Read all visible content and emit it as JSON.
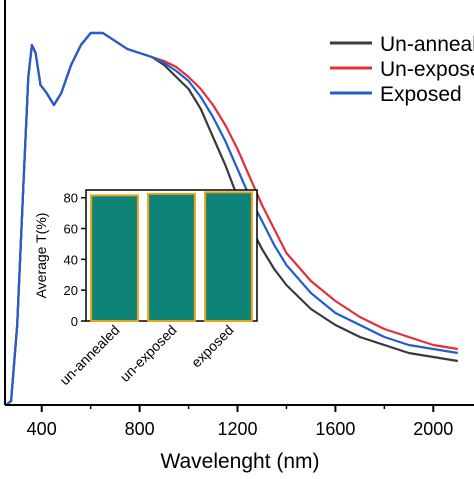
{
  "chart_data": [
    {
      "type": "line",
      "xlabel": "Wavelenght (nm)",
      "ylabel": "",
      "xlim": [
        250,
        2150
      ],
      "ylim": [
        0,
        1
      ],
      "x_ticks": [
        400,
        800,
        1200,
        1600,
        2000
      ],
      "x_tick_labels": [
        "400",
        "800",
        "1200",
        "1600",
        "2000"
      ],
      "legend_position": "top-right",
      "series": [
        {
          "name": "Un-annealed",
          "color": "#3a3a3a",
          "points": [
            [
              255,
              0.0
            ],
            [
              275,
              0.01
            ],
            [
              300,
              0.2
            ],
            [
              325,
              0.55
            ],
            [
              345,
              0.82
            ],
            [
              360,
              0.9
            ],
            [
              375,
              0.88
            ],
            [
              395,
              0.8
            ],
            [
              420,
              0.78
            ],
            [
              450,
              0.75
            ],
            [
              480,
              0.78
            ],
            [
              520,
              0.85
            ],
            [
              560,
              0.9
            ],
            [
              600,
              0.93
            ],
            [
              650,
              0.93
            ],
            [
              700,
              0.91
            ],
            [
              750,
              0.89
            ],
            [
              800,
              0.88
            ],
            [
              850,
              0.87
            ],
            [
              900,
              0.85
            ],
            [
              950,
              0.82
            ],
            [
              1000,
              0.79
            ],
            [
              1050,
              0.74
            ],
            [
              1100,
              0.67
            ],
            [
              1150,
              0.6
            ],
            [
              1200,
              0.52
            ],
            [
              1250,
              0.45
            ],
            [
              1300,
              0.39
            ],
            [
              1350,
              0.34
            ],
            [
              1400,
              0.3
            ],
            [
              1500,
              0.24
            ],
            [
              1600,
              0.2
            ],
            [
              1700,
              0.17
            ],
            [
              1800,
              0.15
            ],
            [
              1900,
              0.13
            ],
            [
              2000,
              0.12
            ],
            [
              2100,
              0.11
            ]
          ]
        },
        {
          "name": "Un-exposed",
          "color": "#e0303a",
          "points": [
            [
              255,
              0.0
            ],
            [
              275,
              0.01
            ],
            [
              300,
              0.2
            ],
            [
              325,
              0.55
            ],
            [
              345,
              0.82
            ],
            [
              360,
              0.9
            ],
            [
              375,
              0.88
            ],
            [
              395,
              0.8
            ],
            [
              420,
              0.78
            ],
            [
              450,
              0.75
            ],
            [
              480,
              0.78
            ],
            [
              520,
              0.85
            ],
            [
              560,
              0.9
            ],
            [
              600,
              0.93
            ],
            [
              650,
              0.93
            ],
            [
              700,
              0.91
            ],
            [
              750,
              0.89
            ],
            [
              800,
              0.88
            ],
            [
              850,
              0.87
            ],
            [
              900,
              0.86
            ],
            [
              950,
              0.845
            ],
            [
              1000,
              0.82
            ],
            [
              1050,
              0.79
            ],
            [
              1100,
              0.75
            ],
            [
              1150,
              0.7
            ],
            [
              1200,
              0.64
            ],
            [
              1250,
              0.57
            ],
            [
              1300,
              0.5
            ],
            [
              1350,
              0.44
            ],
            [
              1400,
              0.38
            ],
            [
              1500,
              0.31
            ],
            [
              1600,
              0.26
            ],
            [
              1700,
              0.22
            ],
            [
              1800,
              0.19
            ],
            [
              1900,
              0.17
            ],
            [
              2000,
              0.15
            ],
            [
              2100,
              0.14
            ]
          ]
        },
        {
          "name": "Exposed",
          "color": "#1f5fd0",
          "points": [
            [
              255,
              0.0
            ],
            [
              275,
              0.01
            ],
            [
              300,
              0.2
            ],
            [
              325,
              0.55
            ],
            [
              345,
              0.82
            ],
            [
              360,
              0.9
            ],
            [
              375,
              0.88
            ],
            [
              395,
              0.8
            ],
            [
              420,
              0.78
            ],
            [
              450,
              0.75
            ],
            [
              480,
              0.78
            ],
            [
              520,
              0.85
            ],
            [
              560,
              0.9
            ],
            [
              600,
              0.93
            ],
            [
              650,
              0.93
            ],
            [
              700,
              0.91
            ],
            [
              750,
              0.89
            ],
            [
              800,
              0.88
            ],
            [
              850,
              0.87
            ],
            [
              900,
              0.855
            ],
            [
              950,
              0.835
            ],
            [
              1000,
              0.81
            ],
            [
              1050,
              0.77
            ],
            [
              1100,
              0.72
            ],
            [
              1150,
              0.66
            ],
            [
              1200,
              0.59
            ],
            [
              1250,
              0.52
            ],
            [
              1300,
              0.46
            ],
            [
              1350,
              0.4
            ],
            [
              1400,
              0.35
            ],
            [
              1500,
              0.28
            ],
            [
              1600,
              0.23
            ],
            [
              1700,
              0.2
            ],
            [
              1800,
              0.17
            ],
            [
              1900,
              0.15
            ],
            [
              2000,
              0.14
            ],
            [
              2100,
              0.13
            ]
          ]
        }
      ]
    },
    {
      "type": "bar",
      "categories": [
        "un-annealed",
        "un-exposed",
        "exposed"
      ],
      "values": [
        81.5,
        82.5,
        83.5
      ],
      "ylabel": "Average T(%)",
      "ylim": [
        0,
        85
      ],
      "y_ticks": [
        0,
        20,
        40,
        60,
        80
      ],
      "bar_color": "#0e8378",
      "bar_edge_color": "#e8a317"
    }
  ]
}
